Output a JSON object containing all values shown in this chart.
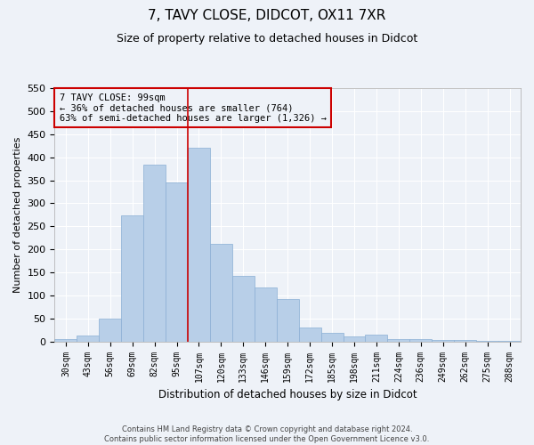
{
  "title1": "7, TAVY CLOSE, DIDCOT, OX11 7XR",
  "title2": "Size of property relative to detached houses in Didcot",
  "xlabel": "Distribution of detached houses by size in Didcot",
  "ylabel": "Number of detached properties",
  "categories": [
    "30sqm",
    "43sqm",
    "56sqm",
    "69sqm",
    "82sqm",
    "95sqm",
    "107sqm",
    "120sqm",
    "133sqm",
    "146sqm",
    "159sqm",
    "172sqm",
    "185sqm",
    "198sqm",
    "211sqm",
    "224sqm",
    "236sqm",
    "249sqm",
    "262sqm",
    "275sqm",
    "288sqm"
  ],
  "values": [
    5,
    13,
    50,
    273,
    384,
    345,
    420,
    212,
    143,
    117,
    92,
    31,
    19,
    11,
    15,
    5,
    5,
    4,
    4,
    1,
    2
  ],
  "bar_color": "#b8cfe8",
  "bar_edge_color": "#8aafd4",
  "property_label": "7 TAVY CLOSE: 99sqm",
  "annotation_line1": "← 36% of detached houses are smaller (764)",
  "annotation_line2": "63% of semi-detached houses are larger (1,326) →",
  "vline_color": "#cc0000",
  "annotation_box_edge_color": "#cc0000",
  "background_color": "#eef2f8",
  "grid_color": "#ffffff",
  "ylim": [
    0,
    550
  ],
  "yticks": [
    0,
    50,
    100,
    150,
    200,
    250,
    300,
    350,
    400,
    450,
    500,
    550
  ],
  "footnote1": "Contains HM Land Registry data © Crown copyright and database right 2024.",
  "footnote2": "Contains public sector information licensed under the Open Government Licence v3.0.",
  "title1_fontsize": 11,
  "title2_fontsize": 9,
  "vline_position": 5.5
}
